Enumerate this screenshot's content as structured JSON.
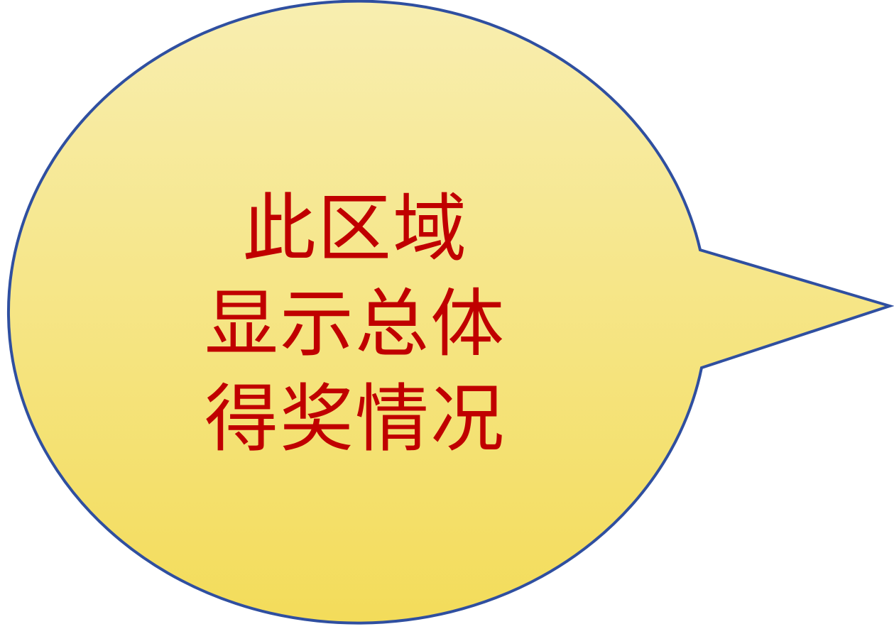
{
  "callout": {
    "lines": [
      "此区域",
      "显示总体",
      "得奖情况"
    ],
    "fill_top": "#f8eeb0",
    "fill_bottom": "#f3dc5a",
    "outline": "#2f4fa0",
    "text_color": "#c00000"
  }
}
